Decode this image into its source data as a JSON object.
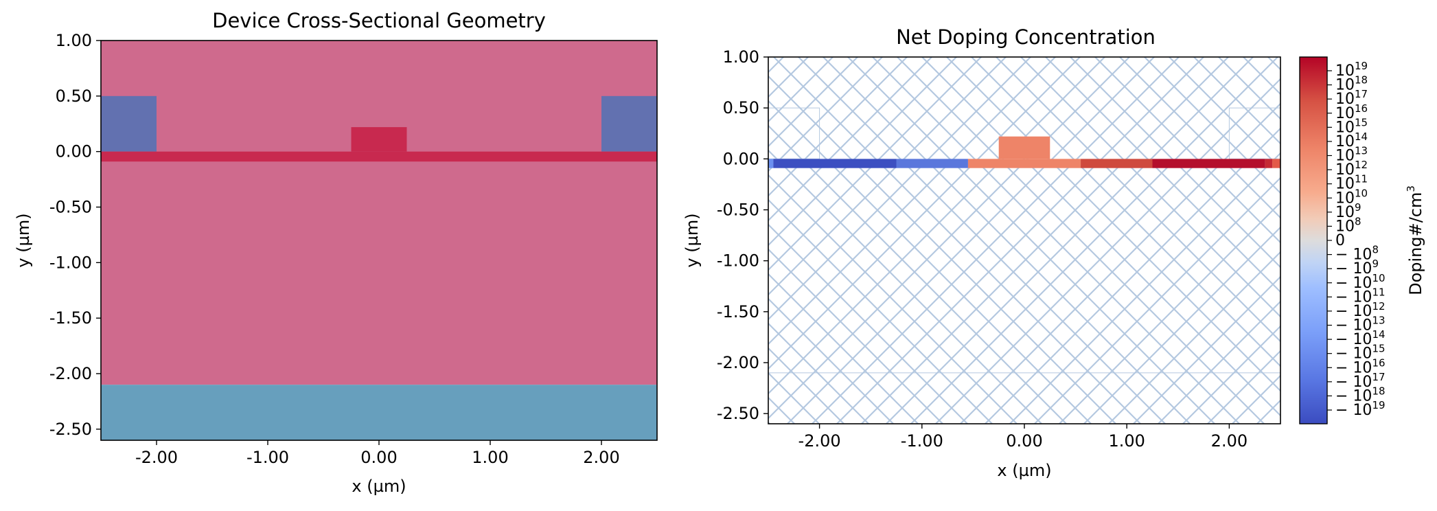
{
  "chart_data": [
    {
      "type": "heatmap",
      "title": "Device Cross-Sectional Geometry",
      "xlabel": "x (µm)",
      "ylabel": "y (µm)",
      "xlim": [
        -2.5,
        2.5
      ],
      "ylim": [
        -2.6,
        1.0
      ],
      "xticks": [
        -2,
        -1,
        0,
        1,
        2
      ],
      "xtick_labels": [
        "-2.00",
        "-1.00",
        "0.00",
        "1.00",
        "2.00"
      ],
      "yticks": [
        1,
        0.5,
        0,
        -0.5,
        -1,
        -1.5,
        -2,
        -2.5
      ],
      "ytick_labels": [
        "1.00",
        "0.50",
        "0.00",
        "-0.50",
        "-1.00",
        "-1.50",
        "-2.00",
        "-2.50"
      ],
      "grid": false,
      "regions": [
        {
          "x": [
            -2.5,
            2.5
          ],
          "y": [
            -2.1,
            1.0
          ],
          "color": "#cf6a8d"
        },
        {
          "x": [
            -2.5,
            2.5
          ],
          "y": [
            -2.6,
            -2.1
          ],
          "color": "#679fbd"
        },
        {
          "x": [
            -2.5,
            -2.0
          ],
          "y": [
            0.0,
            0.5
          ],
          "color": "#6271b0"
        },
        {
          "x": [
            2.0,
            2.5
          ],
          "y": [
            0.0,
            0.5
          ],
          "color": "#6271b0"
        },
        {
          "x": [
            -2.5,
            2.5
          ],
          "y": [
            -0.09,
            0.0
          ],
          "color": "#c8294f"
        },
        {
          "x": [
            -0.25,
            0.25
          ],
          "y": [
            0.0,
            0.22
          ],
          "color": "#c8294f"
        }
      ]
    },
    {
      "type": "heatmap",
      "title": "Net Doping Concentration",
      "xlabel": "x (µm)",
      "ylabel": "y (µm)",
      "xlim": [
        -2.5,
        2.5
      ],
      "ylim": [
        -2.6,
        1.0
      ],
      "xticks": [
        -2,
        -1,
        0,
        1,
        2
      ],
      "xtick_labels": [
        "-2.00",
        "-1.00",
        "0.00",
        "1.00",
        "2.00"
      ],
      "yticks": [
        1,
        0.5,
        0,
        -0.5,
        -1,
        -1.5,
        -2,
        -2.5
      ],
      "ytick_labels": [
        "1.00",
        "0.50",
        "0.00",
        "-0.50",
        "-1.00",
        "-1.50",
        "-2.00",
        "-2.50"
      ],
      "grid": false,
      "hatch_color": "#b4c8e0",
      "outline_regions": [
        {
          "x": [
            -2.5,
            -2.0
          ],
          "y": [
            0.0,
            0.5
          ]
        },
        {
          "x": [
            2.0,
            2.5
          ],
          "y": [
            0.0,
            0.5
          ]
        },
        {
          "x": [
            -2.5,
            2.5
          ],
          "y": [
            -2.6,
            -2.1
          ]
        }
      ],
      "doping_segments": [
        {
          "x": [
            -2.5,
            -2.45
          ],
          "y": [
            -0.09,
            0.0
          ],
          "value_log": -15,
          "color": "#6b8ff0"
        },
        {
          "x": [
            -2.45,
            -1.25
          ],
          "y": [
            -0.09,
            0.0
          ],
          "value_log": -19,
          "color": "#3c4fc1"
        },
        {
          "x": [
            -1.25,
            -0.55
          ],
          "y": [
            -0.09,
            0.0
          ],
          "value_log": -17,
          "color": "#5a77dc"
        },
        {
          "x": [
            -0.55,
            0.55
          ],
          "y": [
            -0.09,
            0.0
          ],
          "value_log": 15,
          "color": "#ee8468"
        },
        {
          "x": [
            -0.25,
            0.25
          ],
          "y": [
            0.0,
            0.22
          ],
          "value_log": 15,
          "color": "#ee8468"
        },
        {
          "x": [
            0.55,
            1.25
          ],
          "y": [
            -0.09,
            0.0
          ],
          "value_log": 17,
          "color": "#cf4a3e"
        },
        {
          "x": [
            1.25,
            2.35
          ],
          "y": [
            -0.09,
            0.0
          ],
          "value_log": 19,
          "color": "#b40f2c"
        },
        {
          "x": [
            2.35,
            2.42
          ],
          "y": [
            -0.09,
            0.0
          ],
          "value_log": 18,
          "color": "#c52a35"
        },
        {
          "x": [
            2.42,
            2.5
          ],
          "y": [
            -0.09,
            0.0
          ],
          "value_log": 16,
          "color": "#e35a48"
        }
      ],
      "colorbar": {
        "label_base": "Doping#/cm",
        "label_sup": "3",
        "colormap": "coolwarm",
        "ticks": [
          {
            "sign": "",
            "base": "10",
            "exp": "19"
          },
          {
            "sign": "",
            "base": "10",
            "exp": "18"
          },
          {
            "sign": "",
            "base": "10",
            "exp": "17"
          },
          {
            "sign": "",
            "base": "10",
            "exp": "16"
          },
          {
            "sign": "",
            "base": "10",
            "exp": "15"
          },
          {
            "sign": "",
            "base": "10",
            "exp": "14"
          },
          {
            "sign": "",
            "base": "10",
            "exp": "13"
          },
          {
            "sign": "",
            "base": "10",
            "exp": "12"
          },
          {
            "sign": "",
            "base": "10",
            "exp": "11"
          },
          {
            "sign": "",
            "base": "10",
            "exp": "10"
          },
          {
            "sign": "",
            "base": "10",
            "exp": "9"
          },
          {
            "sign": "",
            "base": "10",
            "exp": "8"
          },
          {
            "sign": "",
            "base": "0",
            "exp": ""
          },
          {
            "sign": "−",
            "base": "10",
            "exp": "8"
          },
          {
            "sign": "−",
            "base": "10",
            "exp": "9"
          },
          {
            "sign": "−",
            "base": "10",
            "exp": "10"
          },
          {
            "sign": "−",
            "base": "10",
            "exp": "11"
          },
          {
            "sign": "−",
            "base": "10",
            "exp": "12"
          },
          {
            "sign": "−",
            "base": "10",
            "exp": "13"
          },
          {
            "sign": "−",
            "base": "10",
            "exp": "14"
          },
          {
            "sign": "−",
            "base": "10",
            "exp": "15"
          },
          {
            "sign": "−",
            "base": "10",
            "exp": "16"
          },
          {
            "sign": "−",
            "base": "10",
            "exp": "17"
          },
          {
            "sign": "−",
            "base": "10",
            "exp": "18"
          },
          {
            "sign": "−",
            "base": "10",
            "exp": "19"
          }
        ]
      }
    }
  ]
}
